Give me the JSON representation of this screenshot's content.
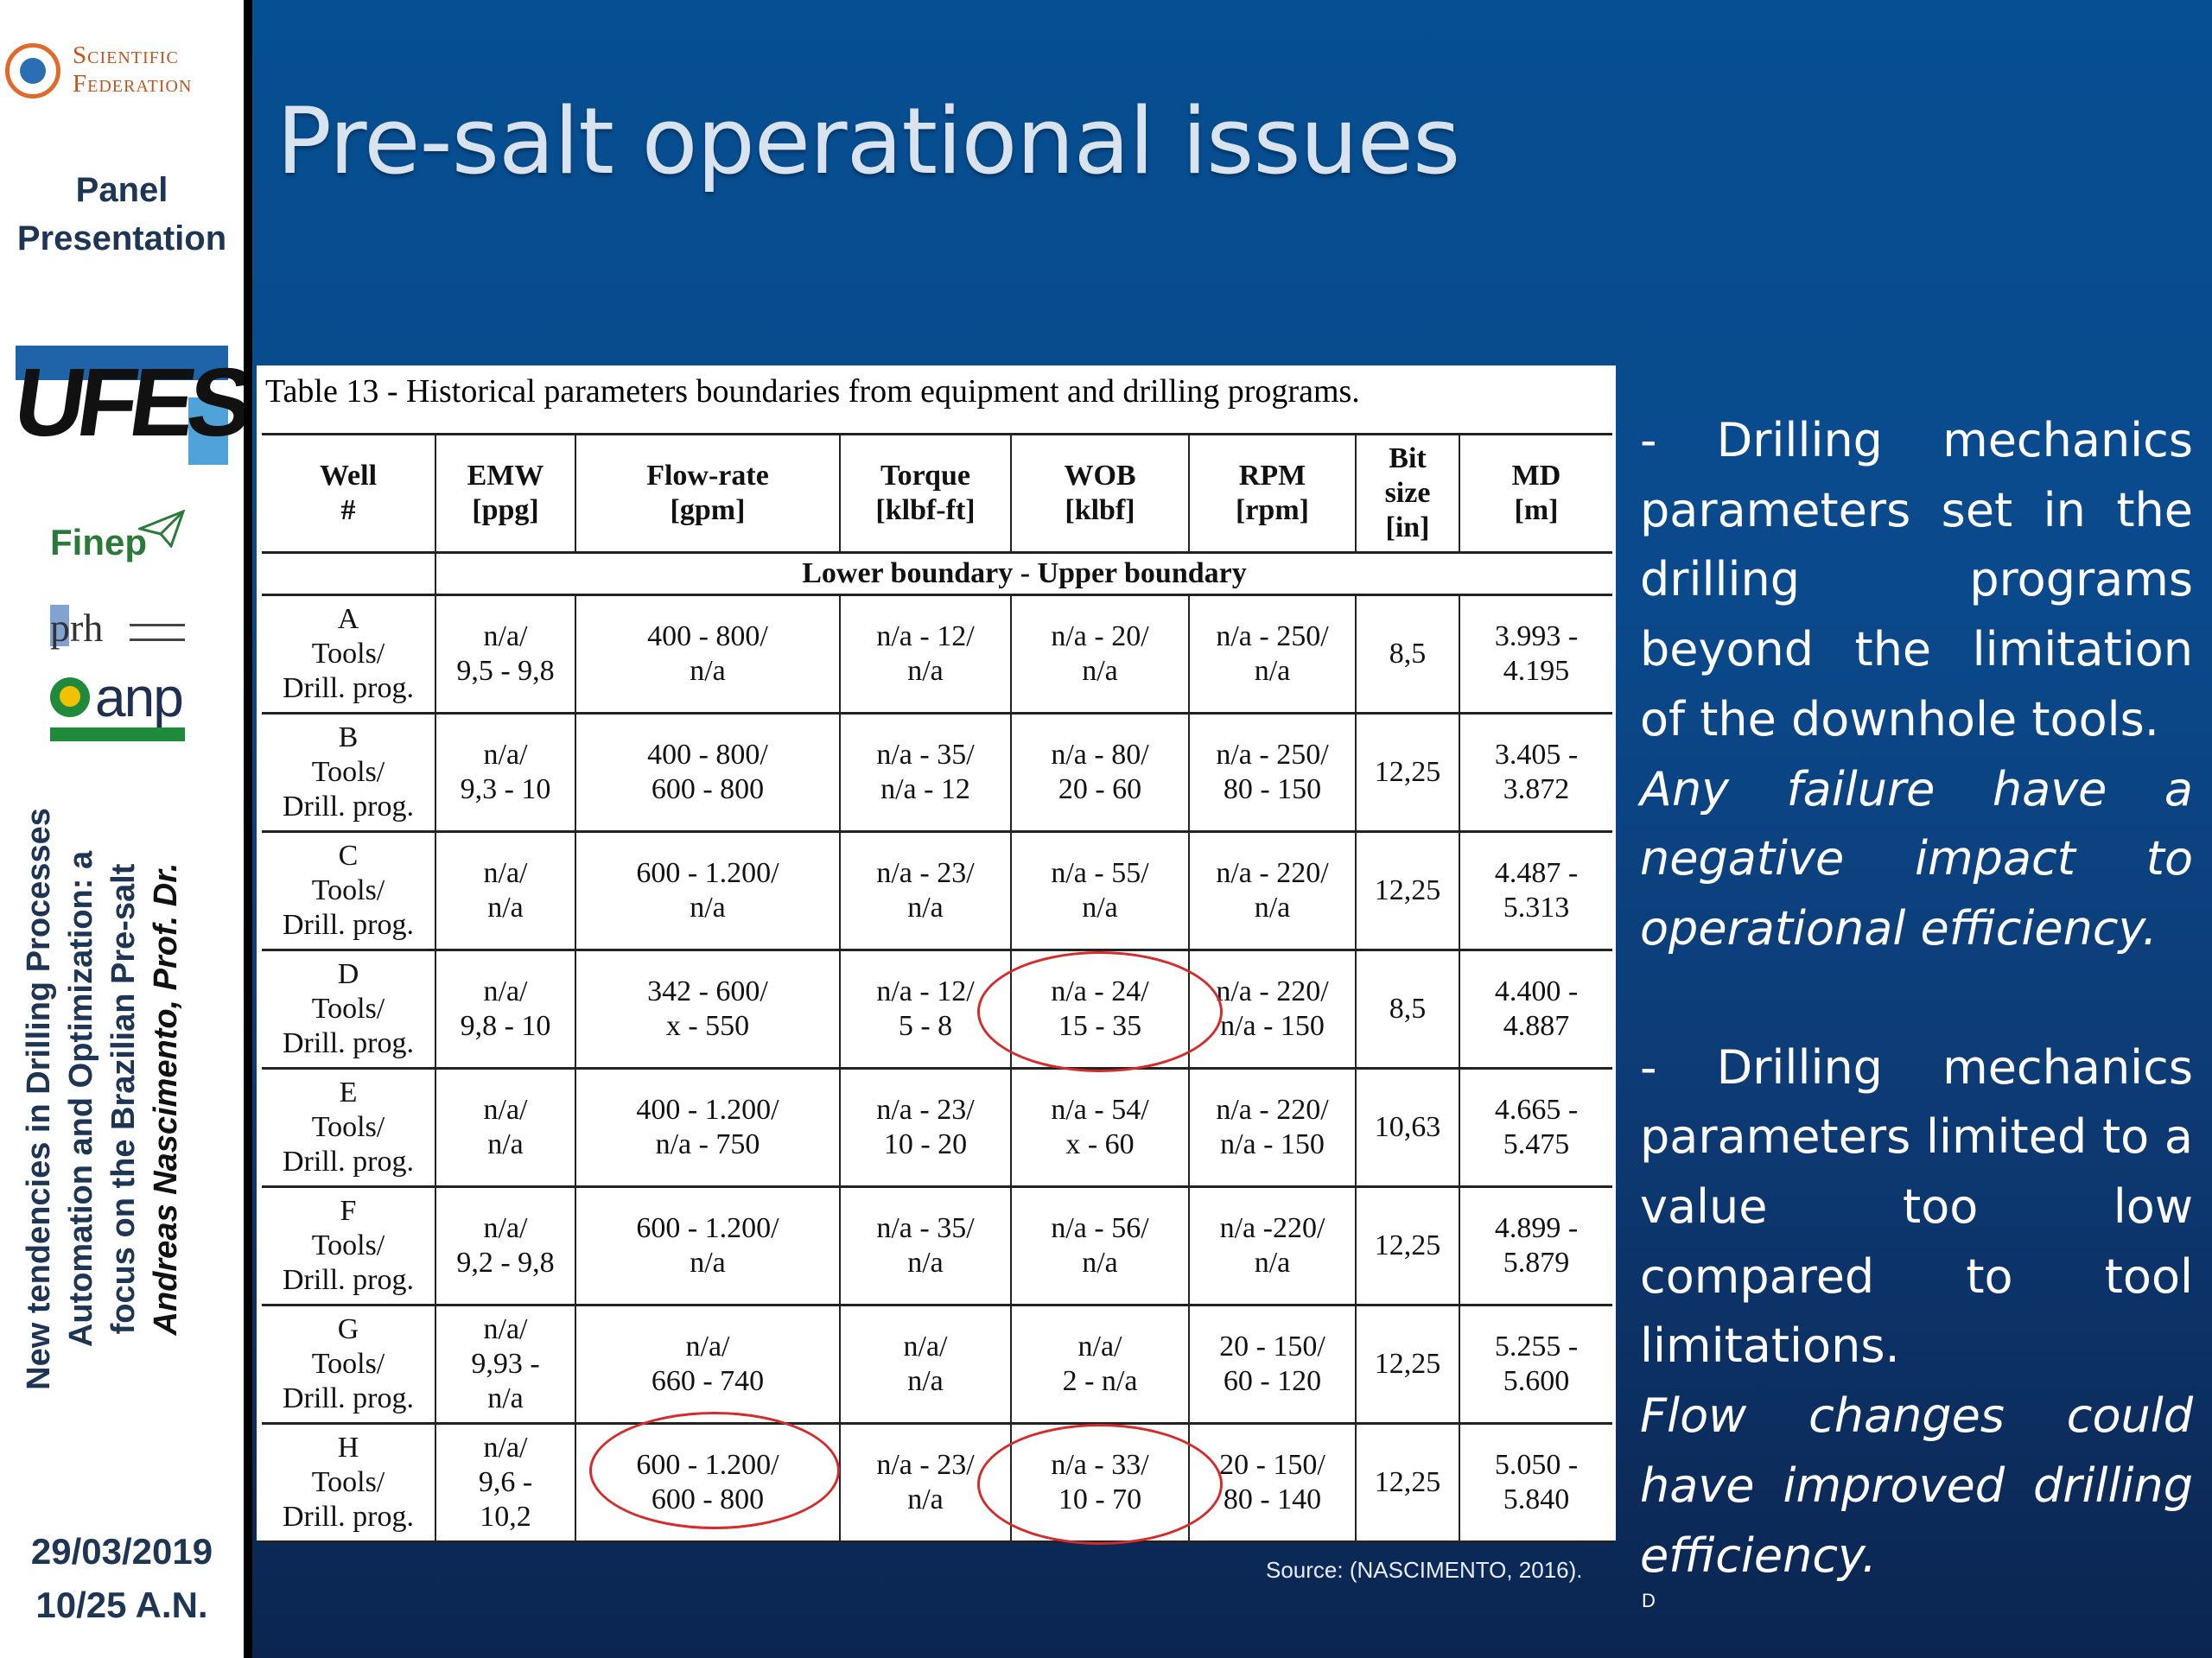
{
  "sidebar": {
    "logo_line1": "Scientific",
    "logo_line2": "Federation",
    "panel_line1": "Panel",
    "panel_line2": "Presentation",
    "ufes_logo": "UFES",
    "finep_logo": "Finep",
    "prh_logo": "prh",
    "anp_logo": "anp",
    "vertical_title_line1": "New tendencies in Drilling Processes",
    "vertical_title_line2": "Automation and Optimization: a",
    "vertical_title_line3": "focus on the Brazilian Pre-salt",
    "vertical_author": "Andreas Nascimento, Prof. Dr.",
    "date": "29/03/2019",
    "slide_number": "10/25  A.N."
  },
  "main": {
    "title": "Pre-salt operational issues",
    "table_caption": "Table 13 - Historical parameters boundaries from equipment and drilling programs.",
    "source": "Source: (NASCIMENTO, 2016).",
    "footer_mark": "D"
  },
  "table": {
    "headers": {
      "well": [
        "Well",
        "#"
      ],
      "emw": [
        "EMW",
        "[ppg]"
      ],
      "flow": [
        "Flow-rate",
        "[gpm]"
      ],
      "torque": [
        "Torque",
        "[klbf-ft]"
      ],
      "wob": [
        "WOB",
        "[klbf]"
      ],
      "rpm": [
        "RPM",
        "[rpm]"
      ],
      "bit": [
        "Bit",
        "size",
        "[in]"
      ],
      "md": [
        "MD",
        "[m]"
      ]
    },
    "subheader": "Lower boundary - Upper boundary",
    "rows": [
      {
        "well": [
          "A",
          "Tools/",
          "Drill. prog."
        ],
        "emw": [
          "n/a/",
          "9,5 - 9,8"
        ],
        "flow": [
          "400 - 800/",
          "n/a"
        ],
        "torque": [
          "n/a - 12/",
          "n/a"
        ],
        "wob": [
          "n/a - 20/",
          "n/a"
        ],
        "rpm": [
          "n/a - 250/",
          "n/a"
        ],
        "bit": [
          "8,5"
        ],
        "md": [
          "3.993 -",
          "4.195"
        ]
      },
      {
        "well": [
          "B",
          "Tools/",
          "Drill. prog."
        ],
        "emw": [
          "n/a/",
          "9,3 - 10"
        ],
        "flow": [
          "400 - 800/",
          "600 - 800"
        ],
        "torque": [
          "n/a - 35/",
          "n/a - 12"
        ],
        "wob": [
          "n/a - 80/",
          "20 - 60"
        ],
        "rpm": [
          "n/a - 250/",
          "80 - 150"
        ],
        "bit": [
          "12,25"
        ],
        "md": [
          "3.405 -",
          "3.872"
        ]
      },
      {
        "well": [
          "C",
          "Tools/",
          "Drill. prog."
        ],
        "emw": [
          "n/a/",
          "n/a"
        ],
        "flow": [
          "600 - 1.200/",
          "n/a"
        ],
        "torque": [
          "n/a - 23/",
          "n/a"
        ],
        "wob": [
          "n/a - 55/",
          "n/a"
        ],
        "rpm": [
          "n/a - 220/",
          "n/a"
        ],
        "bit": [
          "12,25"
        ],
        "md": [
          "4.487 -",
          "5.313"
        ]
      },
      {
        "well": [
          "D",
          "Tools/",
          "Drill. prog."
        ],
        "emw": [
          "n/a/",
          "9,8 - 10"
        ],
        "flow": [
          "342 - 600/",
          "x - 550"
        ],
        "torque": [
          "n/a - 12/",
          "5 - 8"
        ],
        "wob": [
          "n/a - 24/",
          "15 - 35"
        ],
        "rpm": [
          "n/a - 220/",
          "n/a - 150"
        ],
        "bit": [
          "8,5"
        ],
        "md": [
          "4.400 -",
          "4.887"
        ]
      },
      {
        "well": [
          "E",
          "Tools/",
          "Drill. prog."
        ],
        "emw": [
          "n/a/",
          "n/a"
        ],
        "flow": [
          "400 - 1.200/",
          "n/a - 750"
        ],
        "torque": [
          "n/a - 23/",
          "10 - 20"
        ],
        "wob": [
          "n/a - 54/",
          "x - 60"
        ],
        "rpm": [
          "n/a - 220/",
          "n/a - 150"
        ],
        "bit": [
          "10,63"
        ],
        "md": [
          "4.665 -",
          "5.475"
        ]
      },
      {
        "well": [
          "F",
          "Tools/",
          "Drill. prog."
        ],
        "emw": [
          "n/a/",
          "9,2 - 9,8"
        ],
        "flow": [
          "600 - 1.200/",
          "n/a"
        ],
        "torque": [
          "n/a - 35/",
          "n/a"
        ],
        "wob": [
          "n/a - 56/",
          "n/a"
        ],
        "rpm": [
          "n/a -220/",
          "n/a"
        ],
        "bit": [
          "12,25"
        ],
        "md": [
          "4.899 -",
          "5.879"
        ]
      },
      {
        "well": [
          "G",
          "Tools/",
          "Drill. prog."
        ],
        "emw": [
          "n/a/",
          "9,93 -",
          "n/a"
        ],
        "flow": [
          "n/a/",
          "660 - 740"
        ],
        "torque": [
          "n/a/",
          "n/a"
        ],
        "wob": [
          "n/a/",
          "2 - n/a"
        ],
        "rpm": [
          "20 - 150/",
          "60 - 120"
        ],
        "bit": [
          "12,25"
        ],
        "md": [
          "5.255 -",
          "5.600"
        ]
      },
      {
        "well": [
          "H",
          "Tools/",
          "Drill. prog."
        ],
        "emw": [
          "n/a/",
          "9,6 -",
          "10,2"
        ],
        "flow": [
          "600 - 1.200/",
          "600 - 800"
        ],
        "torque": [
          "n/a - 23/",
          "n/a"
        ],
        "wob": [
          "n/a - 33/",
          "10 - 70"
        ],
        "rpm": [
          "20 - 150/",
          "80 - 140"
        ],
        "bit": [
          "12,25"
        ],
        "md": [
          "5.050 -",
          "5.840"
        ]
      }
    ]
  },
  "bullets": {
    "b1_lead": "-  Drilling mechanics parameters set in the drilling programs beyond the limitation of the downhole tools.",
    "b1_italic": "Any failure have a negative impact to operational efficiency.",
    "b2_lead": "-  Drilling mechanics parameters limited to a value too low compared to tool limitations.",
    "b2_italic": "Flow changes could have improved drilling efficiency."
  },
  "colors": {
    "sidebar_bg": "#ffffff",
    "main_bg": "#0a4a8c",
    "title_color": "#d8e3ef",
    "highlight_circle": "#d42b2b",
    "sidebar_text": "#1e3554"
  }
}
